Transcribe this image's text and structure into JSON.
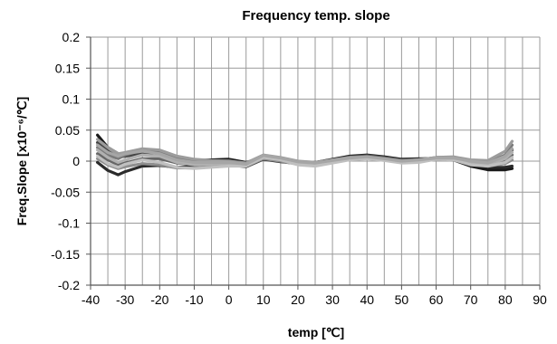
{
  "chart_data": {
    "type": "line",
    "title": "Frequency temp. slope",
    "xlabel": "temp [℃]",
    "ylabel": "Freq.Slope [x10⁻⁶/℃]",
    "xlim": [
      -40,
      90
    ],
    "ylim": [
      -0.2,
      0.2
    ],
    "x_ticks": [
      "-40",
      "-30",
      "-20",
      "-10",
      "0",
      "10",
      "20",
      "30",
      "40",
      "50",
      "60",
      "70",
      "80",
      "90"
    ],
    "y_ticks": [
      "0.2",
      "0.15",
      "0.1",
      "0.05",
      "0",
      "-0.05",
      "-0.1",
      "-0.15",
      "-0.2"
    ],
    "x_tick_values": [
      -40,
      -30,
      -20,
      -10,
      0,
      10,
      20,
      30,
      40,
      50,
      60,
      70,
      80,
      90
    ],
    "y_tick_values": [
      0.2,
      0.15,
      0.1,
      0.05,
      0,
      -0.05,
      -0.1,
      -0.15,
      -0.2
    ],
    "x_minor_step": 5,
    "grid": true,
    "legend": "none",
    "x": [
      -38,
      -35,
      -32,
      -30,
      -25,
      -20,
      -15,
      -10,
      -5,
      0,
      5,
      10,
      15,
      20,
      25,
      30,
      35,
      40,
      45,
      50,
      55,
      60,
      65,
      70,
      75,
      80,
      82
    ],
    "series": [
      {
        "color": "#1a1a1a",
        "values": [
          0.042,
          0.022,
          0.012,
          0.012,
          0.015,
          0.012,
          0.004,
          0.001,
          0.002,
          0.003,
          -0.002,
          0.006,
          0.0,
          -0.003,
          -0.002,
          0.003,
          0.008,
          0.01,
          0.007,
          0.003,
          0.004,
          0.004,
          0.002,
          -0.008,
          -0.014,
          -0.014,
          -0.012
        ]
      },
      {
        "color": "#2b2b2b",
        "values": [
          -0.002,
          -0.015,
          -0.022,
          -0.017,
          -0.008,
          -0.007,
          -0.01,
          -0.008,
          -0.005,
          -0.006,
          -0.009,
          0.003,
          -0.001,
          -0.004,
          -0.004,
          0.0,
          0.005,
          0.008,
          0.006,
          0.002,
          0.003,
          0.004,
          0.003,
          -0.004,
          -0.01,
          -0.01,
          -0.008
        ]
      },
      {
        "color": "#444444",
        "values": [
          0.03,
          0.016,
          0.006,
          0.008,
          0.012,
          0.01,
          0.003,
          -0.001,
          0.0,
          0.001,
          -0.004,
          0.005,
          0.001,
          -0.002,
          -0.002,
          0.002,
          0.007,
          0.009,
          0.006,
          0.002,
          0.003,
          0.005,
          0.004,
          -0.002,
          -0.004,
          0.006,
          0.018
        ]
      },
      {
        "color": "#666666",
        "values": [
          0.012,
          0.002,
          -0.006,
          -0.003,
          0.004,
          0.004,
          -0.003,
          -0.005,
          -0.003,
          -0.002,
          -0.006,
          0.006,
          0.003,
          -0.003,
          -0.004,
          0.0,
          0.006,
          0.008,
          0.005,
          0.001,
          0.002,
          0.005,
          0.004,
          -0.003,
          -0.006,
          0.002,
          0.01
        ]
      },
      {
        "color": "#7a7a7a",
        "values": [
          0.022,
          0.01,
          0.004,
          0.01,
          0.018,
          0.016,
          0.006,
          0.002,
          0.0,
          -0.001,
          -0.004,
          0.008,
          0.004,
          -0.002,
          -0.003,
          0.001,
          0.006,
          0.007,
          0.004,
          0.001,
          0.002,
          0.006,
          0.006,
          0.0,
          -0.002,
          0.01,
          0.026
        ]
      },
      {
        "color": "#8e8e8e",
        "values": [
          0.004,
          -0.006,
          -0.012,
          -0.009,
          -0.004,
          -0.006,
          -0.011,
          -0.011,
          -0.009,
          -0.007,
          -0.008,
          0.004,
          0.0,
          -0.005,
          -0.006,
          -0.002,
          0.003,
          0.006,
          0.003,
          -0.001,
          0.001,
          0.004,
          0.003,
          -0.005,
          -0.008,
          -0.004,
          0.002
        ]
      },
      {
        "color": "#9c9c9c",
        "values": [
          0.035,
          0.022,
          0.012,
          0.014,
          0.02,
          0.018,
          0.008,
          0.003,
          0.001,
          0.0,
          -0.003,
          0.01,
          0.006,
          0.0,
          -0.002,
          0.002,
          0.006,
          0.006,
          0.003,
          0.0,
          0.002,
          0.006,
          0.007,
          0.002,
          0.001,
          0.016,
          0.032
        ]
      },
      {
        "color": "#b0b0b0",
        "values": [
          0.018,
          0.006,
          -0.002,
          0.002,
          0.01,
          0.008,
          -0.002,
          -0.006,
          -0.005,
          -0.004,
          -0.006,
          0.008,
          0.004,
          -0.004,
          -0.006,
          -0.002,
          0.004,
          0.006,
          0.003,
          -0.002,
          -0.001,
          0.004,
          0.004,
          -0.004,
          -0.006,
          0.004,
          0.014
        ]
      },
      {
        "color": "#c0c0c0",
        "values": [
          0.008,
          -0.004,
          -0.01,
          -0.005,
          0.002,
          -0.002,
          -0.01,
          -0.012,
          -0.01,
          -0.008,
          -0.008,
          0.006,
          0.002,
          -0.006,
          -0.008,
          -0.003,
          0.002,
          0.004,
          0.001,
          -0.003,
          -0.002,
          0.003,
          0.002,
          -0.006,
          -0.008,
          -0.002,
          0.006
        ]
      },
      {
        "color": "#a6a6a6",
        "values": [
          0.026,
          0.014,
          0.008,
          0.012,
          0.016,
          0.012,
          0.002,
          -0.002,
          -0.002,
          -0.002,
          -0.005,
          0.009,
          0.005,
          -0.001,
          -0.003,
          0.001,
          0.005,
          0.007,
          0.004,
          0.0,
          0.002,
          0.005,
          0.005,
          0.0,
          -0.003,
          0.008,
          0.02
        ]
      }
    ]
  }
}
